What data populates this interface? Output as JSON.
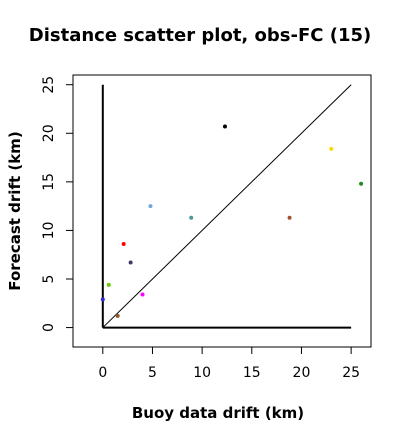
{
  "chart_data": {
    "type": "scatter",
    "title": "Distance scatter plot, obs-FC (15)",
    "xlabel": "Buoy data drift (km)",
    "ylabel": "Forecast drift (km)",
    "xlim": [
      -3,
      27
    ],
    "ylim": [
      -2,
      26
    ],
    "x_ticks": [
      0,
      5,
      10,
      15,
      20,
      25
    ],
    "y_ticks": [
      0,
      5,
      10,
      15,
      20,
      25
    ],
    "grid": false,
    "reference_lines": [
      {
        "kind": "diagonal",
        "from": [
          0,
          0
        ],
        "to": [
          25,
          25
        ],
        "color": "#000000"
      },
      {
        "kind": "x-axis-line",
        "from": [
          0,
          0
        ],
        "to": [
          25,
          0
        ],
        "color": "#000000"
      },
      {
        "kind": "y-axis-line",
        "from": [
          0,
          0
        ],
        "to": [
          0,
          25
        ],
        "color": "#000000"
      }
    ],
    "points": [
      {
        "x": 0.0,
        "y": 2.9,
        "color": "#2b2bd6"
      },
      {
        "x": 0.6,
        "y": 4.4,
        "color": "#66cc00"
      },
      {
        "x": 1.5,
        "y": 1.2,
        "color": "#8b5a2b"
      },
      {
        "x": 2.1,
        "y": 8.6,
        "color": "#ff0000"
      },
      {
        "x": 2.8,
        "y": 6.7,
        "color": "#3b3b6b"
      },
      {
        "x": 4.0,
        "y": 3.4,
        "color": "#ff00ff"
      },
      {
        "x": 4.8,
        "y": 12.5,
        "color": "#6fa8dc"
      },
      {
        "x": 8.9,
        "y": 11.3,
        "color": "#4a9a9a"
      },
      {
        "x": 12.3,
        "y": 20.7,
        "color": "#000000"
      },
      {
        "x": 18.8,
        "y": 11.3,
        "color": "#a0522d"
      },
      {
        "x": 23.0,
        "y": 18.4,
        "color": "#ffd700"
      },
      {
        "x": 26.0,
        "y": 14.8,
        "color": "#228b22"
      }
    ]
  }
}
